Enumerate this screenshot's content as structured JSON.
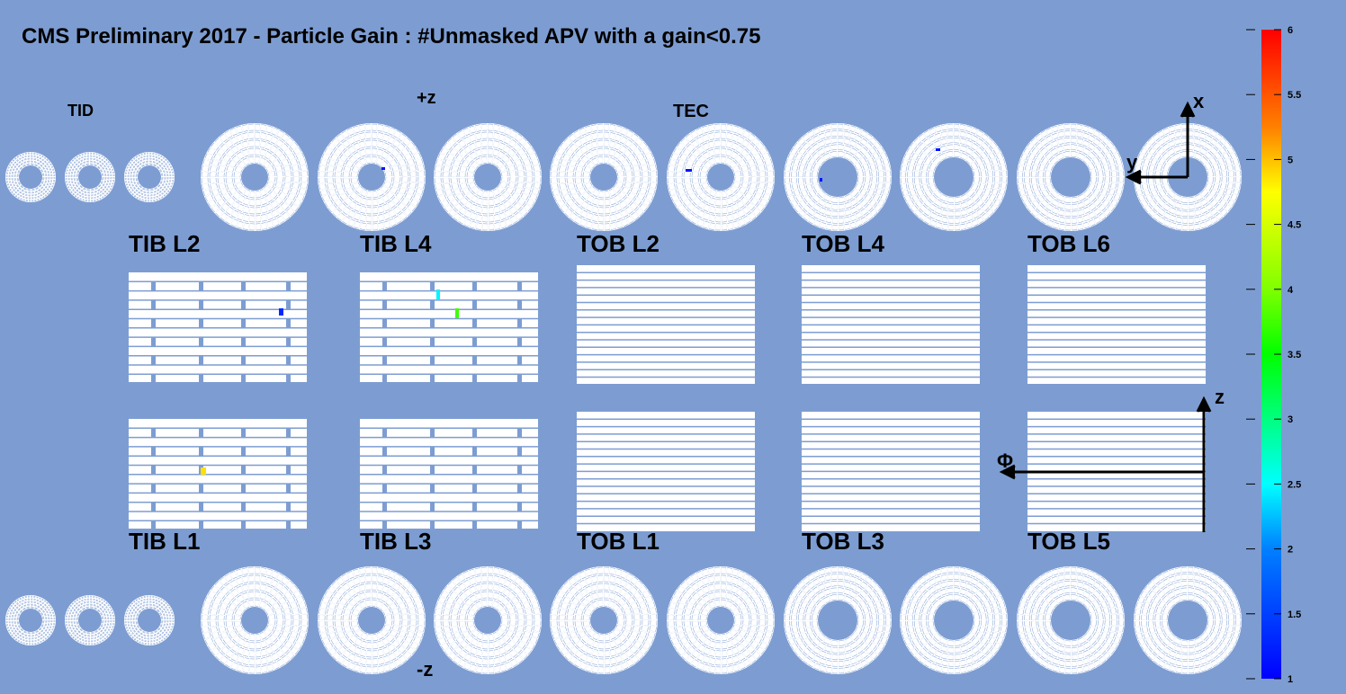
{
  "title": "CMS Preliminary 2017  -  Particle Gain : #Unmasked APV with a gain<0.75",
  "labels": {
    "tid": "TID",
    "plus_z": "+z",
    "tec": "TEC",
    "minus_z": "-z"
  },
  "layers": {
    "top": [
      "TIB L2",
      "TIB L4",
      "TOB L2",
      "TOB L4",
      "TOB L6"
    ],
    "bottom": [
      "TIB L1",
      "TIB L3",
      "TOB L1",
      "TOB L3",
      "TOB L5"
    ]
  },
  "axes": {
    "x": "x",
    "y": "y",
    "z": "z",
    "phi": "Φ"
  },
  "colorbar": {
    "range": [
      1,
      6
    ],
    "ticks": [
      1,
      1.5,
      2,
      2.5,
      3,
      3.5,
      4,
      4.5,
      5,
      5.5,
      6
    ]
  },
  "flagged": [
    1.2,
    2.2,
    3.8,
    4.9,
    1.1,
    1.1,
    1.1,
    1.1
  ]
}
